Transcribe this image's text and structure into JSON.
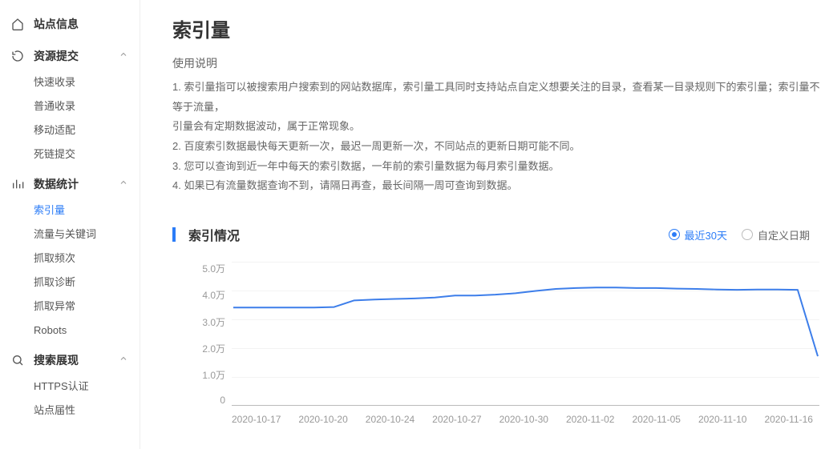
{
  "sidebar": {
    "sections": [
      {
        "label": "站点信息",
        "icon": "home",
        "expanded": false,
        "children": []
      },
      {
        "label": "资源提交",
        "icon": "clock",
        "expanded": true,
        "children": [
          "快速收录",
          "普通收录",
          "移动适配",
          "死链提交"
        ]
      },
      {
        "label": "数据统计",
        "icon": "bars",
        "expanded": true,
        "children": [
          "索引量",
          "流量与关键词",
          "抓取频次",
          "抓取诊断",
          "抓取异常",
          "Robots"
        ],
        "active_index": 0
      },
      {
        "label": "搜索展现",
        "icon": "search",
        "expanded": true,
        "children": [
          "HTTPS认证",
          "站点届性"
        ]
      }
    ]
  },
  "main": {
    "title": "索引量",
    "instructions_heading": "使用说明",
    "instructions": [
      "1. 索引量指可以被搜索用户搜索到的网站数据库，索引量工具同时支持站点自定义想要关注的目录，查看某一目录规则下的索引量；索引量不等于流量，",
      "引量会有定期数据波动，属于正常现象。",
      "2. 百度索引数据最快每天更新一次，最迟一周更新一次，不同站点的更新日期可能不同。",
      "3. 您可以查询到近一年中每天的索引数据，一年前的索引量数据为每月索引量数据。",
      "4. 如果已有流量数据查询不到，请隔日再查，最长间隔一周可查询到数据。"
    ]
  },
  "chart": {
    "type": "line",
    "card_title": "索引情况",
    "filters": [
      {
        "label": "最近30天",
        "checked": true
      },
      {
        "label": "自定义日期",
        "checked": false
      }
    ],
    "ylim": [
      0,
      50000
    ],
    "ytick_labels": [
      "5.0万",
      "4.0万",
      "3.0万",
      "2.0万",
      "1.0万",
      "0"
    ],
    "xtick_labels": [
      "2020-10-17",
      "2020-10-20",
      "2020-10-24",
      "2020-10-27",
      "2020-10-30",
      "2020-11-02",
      "2020-11-05",
      "2020-11-10",
      "2020-11-16"
    ],
    "series_color": "#3d7eea",
    "line_width": 2,
    "grid_color": "#f3f3f3",
    "axis_color": "#bbbbbb",
    "label_color": "#999999",
    "label_fontsize": 12,
    "values": [
      34000,
      34000,
      34000,
      34000,
      34000,
      34200,
      36500,
      36800,
      37000,
      37200,
      37500,
      38200,
      38200,
      38500,
      39000,
      39800,
      40500,
      40800,
      41000,
      41000,
      40800,
      40800,
      40600,
      40500,
      40300,
      40200,
      40300,
      40300,
      40200,
      17000
    ]
  }
}
